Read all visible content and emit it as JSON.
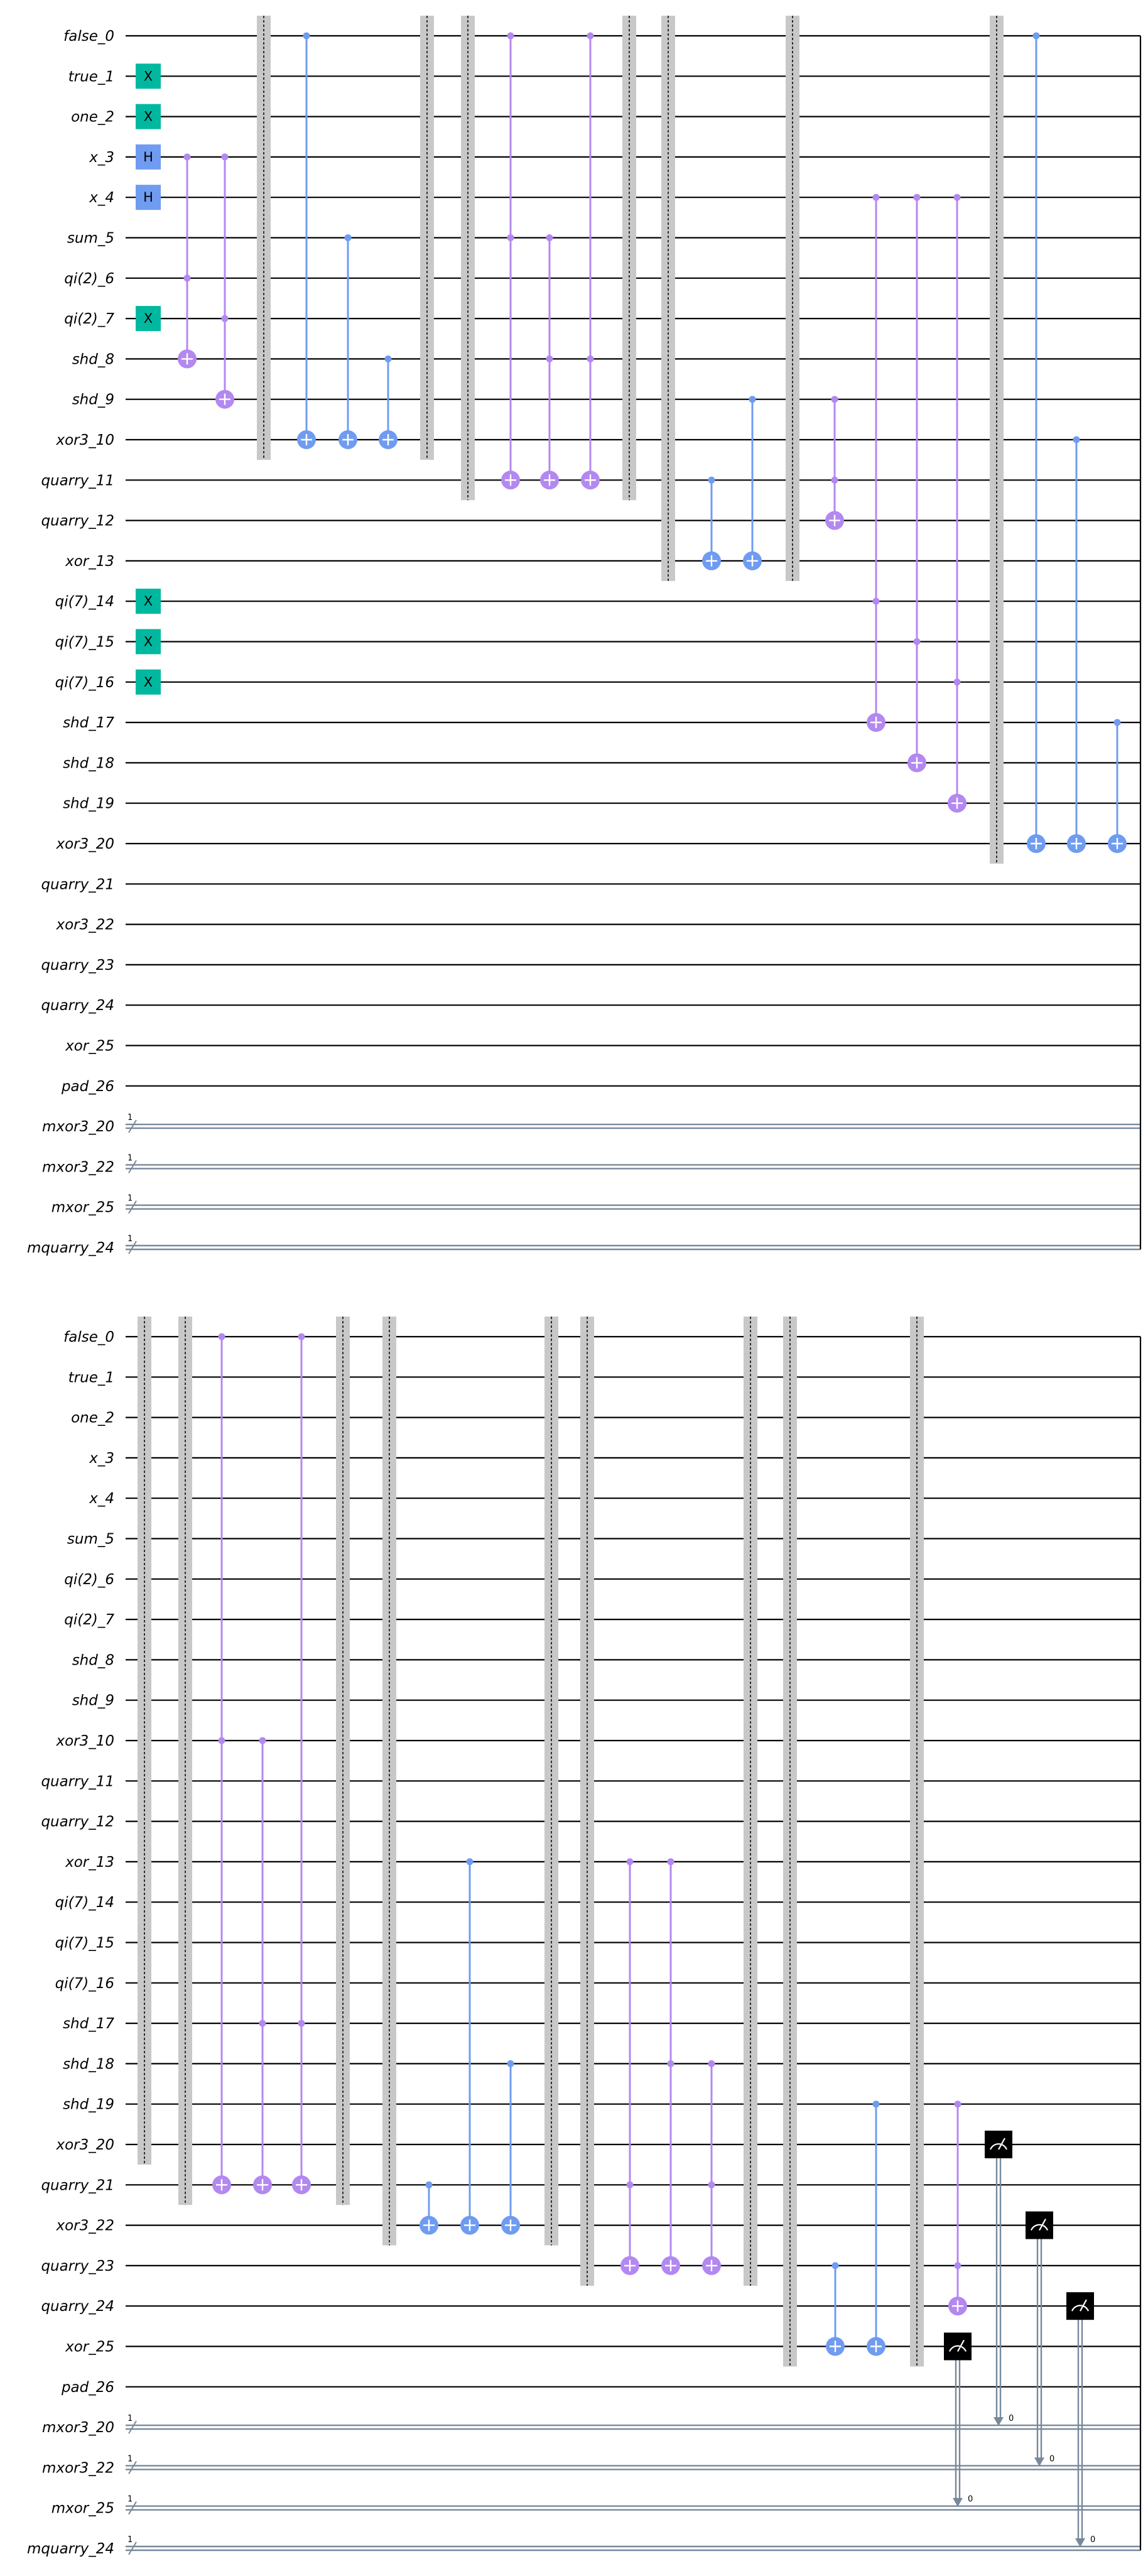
{
  "colors": {
    "background": "#ffffff",
    "wire": "#000000",
    "classical_wire": "#778899",
    "x_gate": "#00b8a0",
    "h_gate": "#6f9cf0",
    "cx_blue": "#6f9cf0",
    "ccx_purple": "#b388f0",
    "barrier": "#c8c8c8",
    "measure": "#000000"
  },
  "qubits": [
    "false_0",
    "true_1",
    "one_2",
    "x_3",
    "x_4",
    "sum_5",
    "qi(2)_6",
    "qi(2)_7",
    "shd_8",
    "shd_9",
    "xor3_10",
    "quarry_11",
    "quarry_12",
    "xor_13",
    "qi(7)_14",
    "qi(7)_15",
    "qi(7)_16",
    "shd_17",
    "shd_18",
    "shd_19",
    "xor3_20",
    "quarry_21",
    "xor3_22",
    "quarry_23",
    "quarry_24",
    "xor_25",
    "pad_26"
  ],
  "clbits": [
    "mxor3_20",
    "mxor3_22",
    "mxor_25",
    "mquarry_24"
  ],
  "clbit_size_label": "1",
  "measure_index_label": "0",
  "gate_labels": {
    "x": "X",
    "h": "H"
  },
  "panels": [
    {
      "gates": [
        {
          "type": "x",
          "qubit": 1,
          "col": 0
        },
        {
          "type": "x",
          "qubit": 2,
          "col": 0
        },
        {
          "type": "h",
          "qubit": 3,
          "col": 0
        },
        {
          "type": "h",
          "qubit": 4,
          "col": 0
        },
        {
          "type": "x",
          "qubit": 7,
          "col": 0
        },
        {
          "type": "x",
          "qubit": 14,
          "col": 0
        },
        {
          "type": "x",
          "qubit": 15,
          "col": 0
        },
        {
          "type": "x",
          "qubit": 16,
          "col": 0
        },
        {
          "type": "ccx",
          "controls": [
            3,
            6
          ],
          "target": 8,
          "col": 1
        },
        {
          "type": "ccx",
          "controls": [
            3,
            7
          ],
          "target": 9,
          "col": 2
        },
        {
          "type": "barrier",
          "from": 0,
          "to": 10,
          "col": 3
        },
        {
          "type": "cx",
          "controls": [
            0
          ],
          "target": 10,
          "col": 4
        },
        {
          "type": "cx",
          "controls": [
            5
          ],
          "target": 10,
          "col": 5
        },
        {
          "type": "cx",
          "controls": [
            8
          ],
          "target": 10,
          "col": 6
        },
        {
          "type": "barrier",
          "from": 0,
          "to": 10,
          "col": 7
        },
        {
          "type": "barrier",
          "from": 0,
          "to": 11,
          "col": 8
        },
        {
          "type": "ccx",
          "controls": [
            0,
            5
          ],
          "target": 11,
          "col": 9
        },
        {
          "type": "ccx",
          "controls": [
            5,
            8
          ],
          "target": 11,
          "col": 10
        },
        {
          "type": "ccx",
          "controls": [
            0,
            8
          ],
          "target": 11,
          "col": 11
        },
        {
          "type": "barrier",
          "from": 0,
          "to": 11,
          "col": 12
        },
        {
          "type": "barrier",
          "from": 0,
          "to": 13,
          "col": 13
        },
        {
          "type": "cx",
          "controls": [
            11
          ],
          "target": 13,
          "col": 14
        },
        {
          "type": "cx",
          "controls": [
            9
          ],
          "target": 13,
          "col": 15
        },
        {
          "type": "barrier",
          "from": 0,
          "to": 13,
          "col": 16
        },
        {
          "type": "ccx",
          "controls": [
            9,
            11
          ],
          "target": 12,
          "col": 17
        },
        {
          "type": "ccx",
          "controls": [
            4,
            14
          ],
          "target": 17,
          "col": 18
        },
        {
          "type": "ccx",
          "controls": [
            4,
            15
          ],
          "target": 18,
          "col": 19
        },
        {
          "type": "ccx",
          "controls": [
            4,
            16
          ],
          "target": 19,
          "col": 20
        },
        {
          "type": "barrier",
          "from": 0,
          "to": 20,
          "col": 21
        },
        {
          "type": "cx",
          "controls": [
            0
          ],
          "target": 20,
          "col": 22
        },
        {
          "type": "cx",
          "controls": [
            10
          ],
          "target": 20,
          "col": 23
        },
        {
          "type": "cx",
          "controls": [
            17
          ],
          "target": 20,
          "col": 24
        }
      ]
    },
    {
      "gates": [
        {
          "type": "barrier",
          "from": 0,
          "to": 20,
          "col": 0
        },
        {
          "type": "barrier",
          "from": 0,
          "to": 21,
          "col": 1
        },
        {
          "type": "ccx",
          "controls": [
            0,
            10
          ],
          "target": 21,
          "col": 2
        },
        {
          "type": "ccx",
          "controls": [
            10,
            17
          ],
          "target": 21,
          "col": 3
        },
        {
          "type": "ccx",
          "controls": [
            0,
            17
          ],
          "target": 21,
          "col": 4
        },
        {
          "type": "barrier",
          "from": 0,
          "to": 21,
          "col": 5
        },
        {
          "type": "barrier",
          "from": 0,
          "to": 22,
          "col": 6
        },
        {
          "type": "cx",
          "controls": [
            21
          ],
          "target": 22,
          "col": 7
        },
        {
          "type": "cx",
          "controls": [
            13
          ],
          "target": 22,
          "col": 8
        },
        {
          "type": "cx",
          "controls": [
            18
          ],
          "target": 22,
          "col": 9
        },
        {
          "type": "barrier",
          "from": 0,
          "to": 22,
          "col": 10
        },
        {
          "type": "barrier",
          "from": 0,
          "to": 23,
          "col": 11
        },
        {
          "type": "ccx",
          "controls": [
            13,
            21
          ],
          "target": 23,
          "col": 12
        },
        {
          "type": "ccx",
          "controls": [
            13,
            18
          ],
          "target": 23,
          "col": 13
        },
        {
          "type": "ccx",
          "controls": [
            18,
            21
          ],
          "target": 23,
          "col": 14
        },
        {
          "type": "barrier",
          "from": 0,
          "to": 23,
          "col": 15
        },
        {
          "type": "barrier",
          "from": 0,
          "to": 25,
          "col": 16
        },
        {
          "type": "cx",
          "controls": [
            23
          ],
          "target": 25,
          "col": 17
        },
        {
          "type": "cx",
          "controls": [
            19
          ],
          "target": 25,
          "col": 18
        },
        {
          "type": "barrier",
          "from": 0,
          "to": 25,
          "col": 19
        },
        {
          "type": "measure",
          "qubit": 25,
          "clbit": 2,
          "col": 20
        },
        {
          "type": "ccx",
          "controls": [
            19,
            23
          ],
          "target": 24,
          "col": 20
        },
        {
          "type": "measure",
          "qubit": 20,
          "clbit": 0,
          "col": 21
        },
        {
          "type": "measure",
          "qubit": 22,
          "clbit": 1,
          "col": 22
        },
        {
          "type": "measure",
          "qubit": 24,
          "clbit": 3,
          "col": 23
        }
      ]
    }
  ]
}
